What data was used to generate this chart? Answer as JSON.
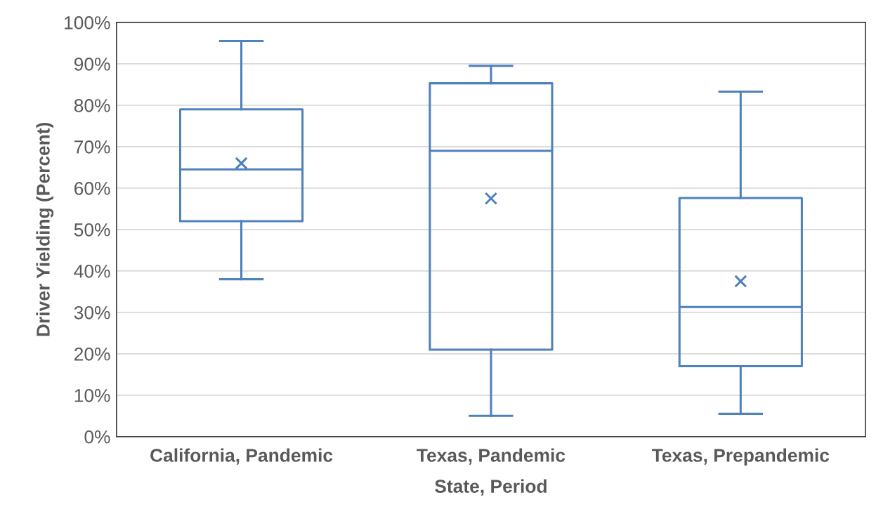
{
  "chart_data": {
    "type": "box",
    "xlabel": "State, Period",
    "ylabel": "Driver Yielding (Percent)",
    "categories": [
      "California, Pandemic",
      "Texas, Pandemic",
      "Texas, Prepandemic"
    ],
    "series": [
      {
        "color": "#4f81bd",
        "boxes": [
          {
            "low": 38,
            "q1": 52,
            "median": 64.5,
            "q3": 79,
            "high": 95.5,
            "mean": 66
          },
          {
            "low": 5,
            "q1": 21,
            "median": 69,
            "q3": 85.3,
            "high": 89.5,
            "mean": 57.5
          },
          {
            "low": 5.5,
            "q1": 17,
            "median": 31.3,
            "q3": 57.6,
            "high": 83.3,
            "mean": 37.5
          }
        ]
      }
    ],
    "ylim": [
      0,
      100
    ],
    "yticks": [
      {
        "value": 0,
        "label": "0%"
      },
      {
        "value": 10,
        "label": "10%"
      },
      {
        "value": 20,
        "label": "20%"
      },
      {
        "value": 30,
        "label": "30%"
      },
      {
        "value": 40,
        "label": "40%"
      },
      {
        "value": 50,
        "label": "50%"
      },
      {
        "value": 60,
        "label": "60%"
      },
      {
        "value": 70,
        "label": "70%"
      },
      {
        "value": 80,
        "label": "80%"
      },
      {
        "value": 90,
        "label": "90%"
      },
      {
        "value": 100,
        "label": "100%"
      }
    ],
    "grid": "y",
    "marker": "cross"
  }
}
